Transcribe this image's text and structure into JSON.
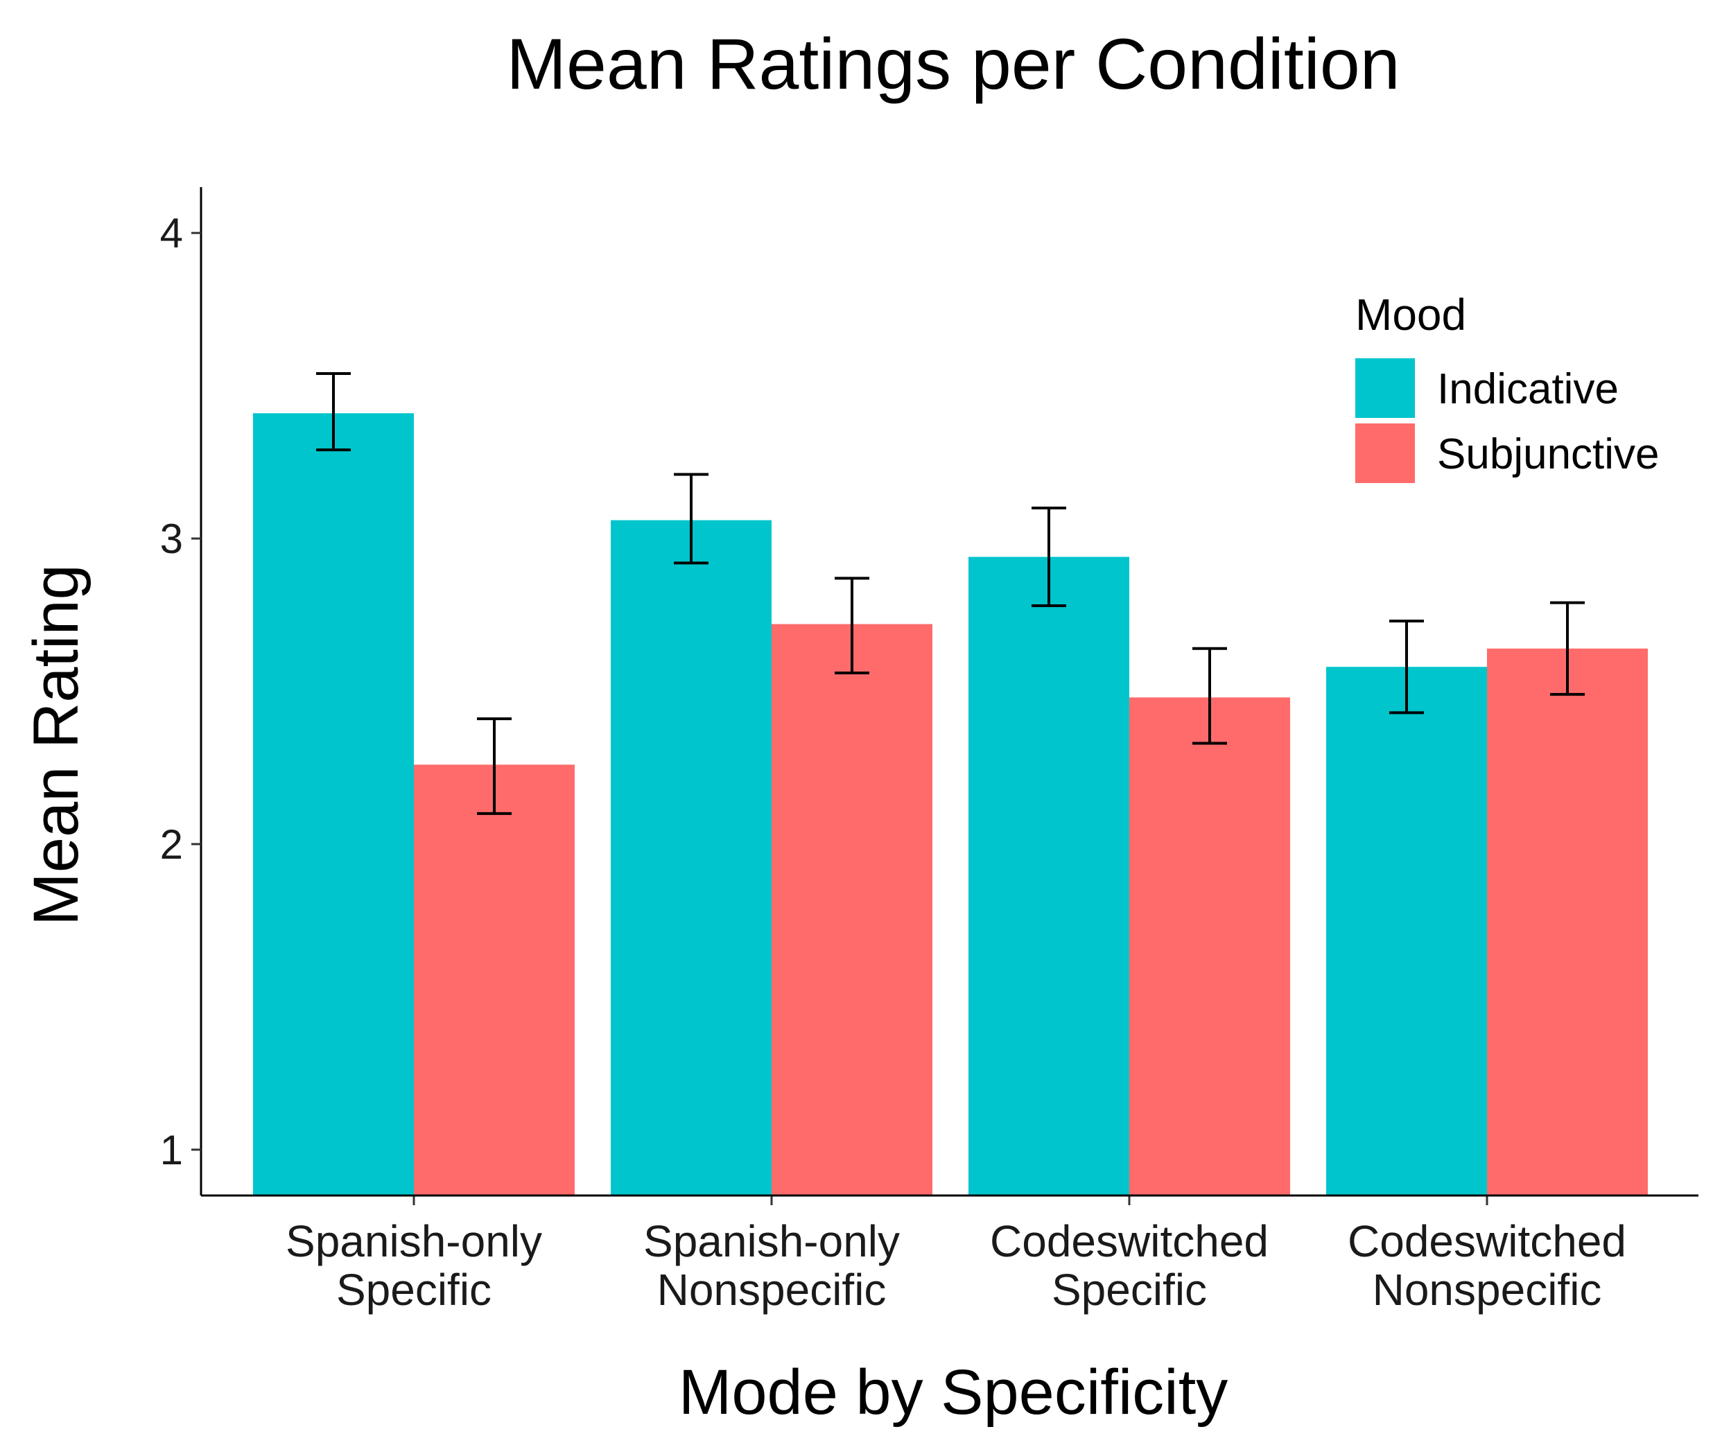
{
  "chart_data": {
    "type": "bar",
    "title": "Mean Ratings per Condition",
    "xlabel": "Mode by Specificity",
    "ylabel": "Mean Rating",
    "ylim": [
      0.85,
      4.15
    ],
    "yticks": [
      1,
      2,
      3,
      4
    ],
    "grid": false,
    "categories": [
      [
        "Spanish-only",
        "Specific"
      ],
      [
        "Spanish-only",
        "Nonspecific"
      ],
      [
        "Codeswitched",
        "Specific"
      ],
      [
        "Codeswitched",
        "Nonspecific"
      ]
    ],
    "series": [
      {
        "name": "Indicative",
        "color": "#00C5CD",
        "values": [
          3.41,
          3.06,
          2.94,
          2.58
        ],
        "error_low": [
          3.29,
          2.92,
          2.78,
          2.43
        ],
        "error_high": [
          3.54,
          3.21,
          3.1,
          2.73
        ]
      },
      {
        "name": "Subjunctive",
        "color": "#FF6B6B",
        "values": [
          2.26,
          2.72,
          2.48,
          2.64
        ],
        "error_low": [
          2.1,
          2.56,
          2.33,
          2.49
        ],
        "error_high": [
          2.41,
          2.87,
          2.64,
          2.79
        ]
      }
    ],
    "legend": {
      "title": "Mood",
      "position": "top-right"
    }
  }
}
